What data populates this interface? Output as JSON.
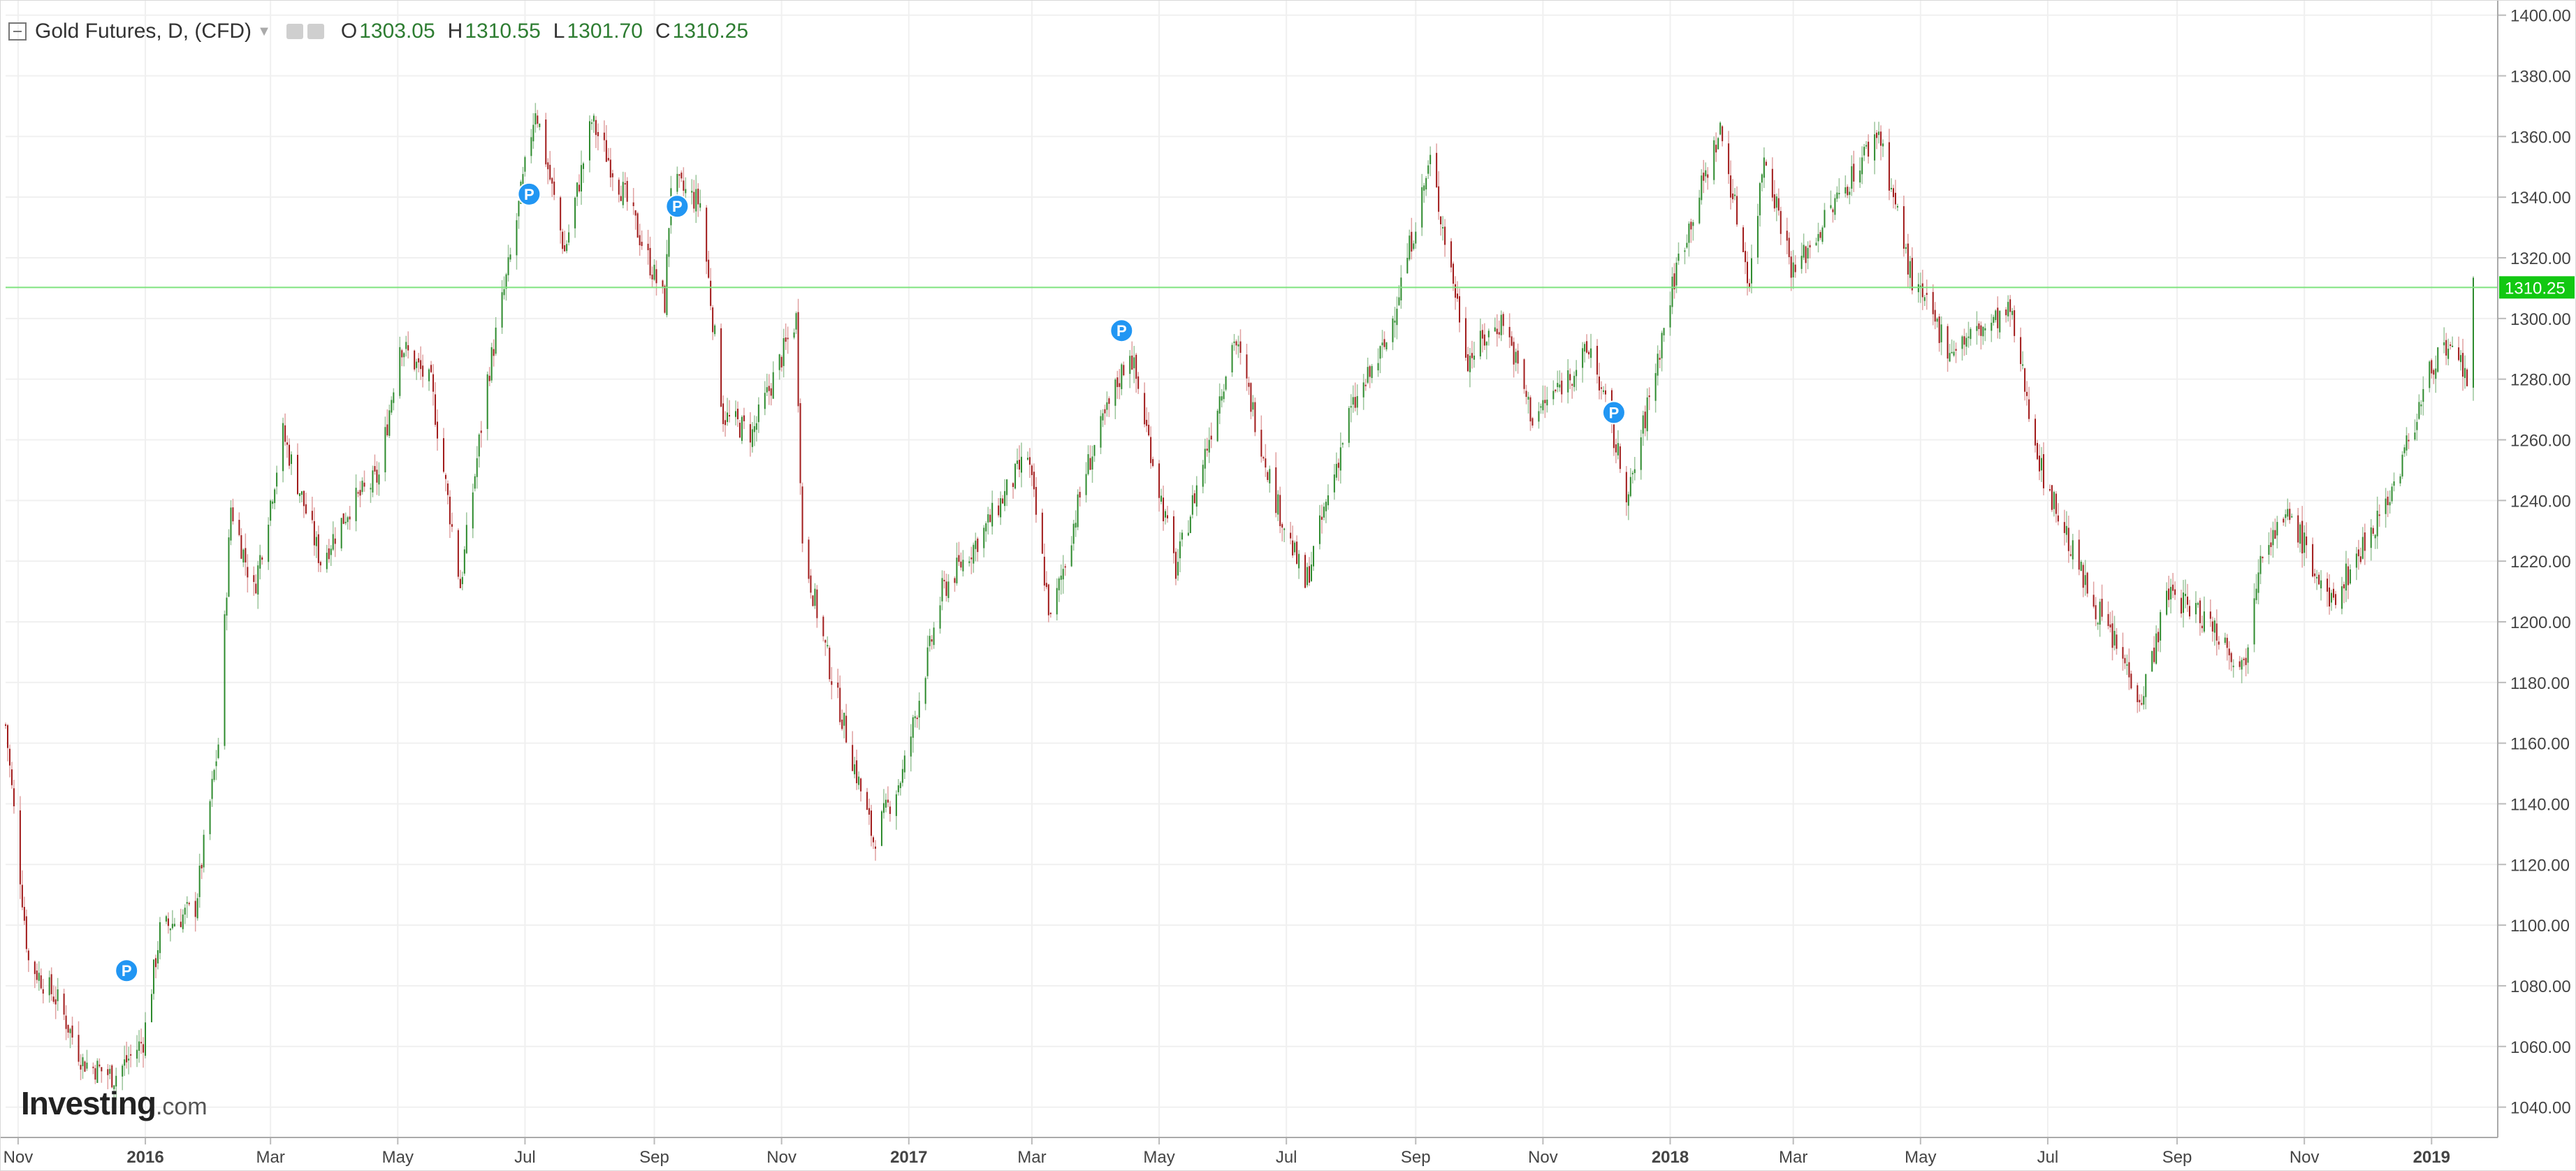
{
  "header": {
    "title": "Gold Futures, D, (CFD)",
    "ohlc": [
      {
        "key": "O",
        "value": "1303.05"
      },
      {
        "key": "H",
        "value": "1310.55"
      },
      {
        "key": "L",
        "value": "1301.70"
      },
      {
        "key": "C",
        "value": "1310.25"
      }
    ]
  },
  "logo": {
    "main": "Investing",
    "sub": ".com"
  },
  "colors": {
    "up": "#2e8b2e",
    "down": "#a11b1b",
    "price_line": "#7fe37f",
    "price_label_bg": "#12c812",
    "marker": "#2196f3",
    "grid": "#f0f0f0",
    "axis_text": "#444444"
  },
  "chart_data": {
    "type": "candlestick",
    "title": "Gold Futures, D, (CFD)",
    "ylim": [
      1030,
      1405
    ],
    "y_ticks": [
      1040,
      1060,
      1080,
      1100,
      1120,
      1140,
      1160,
      1180,
      1200,
      1220,
      1240,
      1260,
      1280,
      1300,
      1320,
      1340,
      1360,
      1380,
      1400
    ],
    "y_tick_labels": [
      "1040.00",
      "1060.00",
      "1080.00",
      "1100.00",
      "1120.00",
      "1140.00",
      "1160.00",
      "1180.00",
      "1200.00",
      "1220.00",
      "1240.00",
      "1260.00",
      "1280.00",
      "1300.00",
      "1320.00",
      "1340.00",
      "1360.00",
      "1380.00",
      "1400.00"
    ],
    "x_range": [
      "2015-10-26",
      "2019-01-21"
    ],
    "x_ticks": [
      {
        "date": "2015-11-01",
        "label": "Nov"
      },
      {
        "date": "2016-01-01",
        "label": "2016"
      },
      {
        "date": "2016-03-01",
        "label": "Mar"
      },
      {
        "date": "2016-05-01",
        "label": "May"
      },
      {
        "date": "2016-07-01",
        "label": "Jul"
      },
      {
        "date": "2016-09-01",
        "label": "Sep"
      },
      {
        "date": "2016-11-01",
        "label": "Nov"
      },
      {
        "date": "2017-01-01",
        "label": "2017"
      },
      {
        "date": "2017-03-01",
        "label": "Mar"
      },
      {
        "date": "2017-05-01",
        "label": "May"
      },
      {
        "date": "2017-07-01",
        "label": "Jul"
      },
      {
        "date": "2017-09-01",
        "label": "Sep"
      },
      {
        "date": "2017-11-01",
        "label": "Nov"
      },
      {
        "date": "2018-01-01",
        "label": "2018"
      },
      {
        "date": "2018-03-01",
        "label": "Mar"
      },
      {
        "date": "2018-05-01",
        "label": "May"
      },
      {
        "date": "2018-07-01",
        "label": "Jul"
      },
      {
        "date": "2018-09-01",
        "label": "Sep"
      },
      {
        "date": "2018-11-01",
        "label": "Nov"
      },
      {
        "date": "2019-01-01",
        "label": "2019"
      }
    ],
    "path": [
      [
        "2015-10-26",
        1166
      ],
      [
        "2015-11-06",
        1088
      ],
      [
        "2015-11-20",
        1075
      ],
      [
        "2015-12-02",
        1055
      ],
      [
        "2015-12-17",
        1050
      ],
      [
        "2015-12-31",
        1062
      ],
      [
        "2016-01-08",
        1098
      ],
      [
        "2016-01-25",
        1106
      ],
      [
        "2016-02-05",
        1160
      ],
      [
        "2016-02-11",
        1238
      ],
      [
        "2016-02-22",
        1210
      ],
      [
        "2016-03-07",
        1262
      ],
      [
        "2016-03-25",
        1220
      ],
      [
        "2016-04-08",
        1238
      ],
      [
        "2016-04-22",
        1248
      ],
      [
        "2016-05-02",
        1292
      ],
      [
        "2016-05-17",
        1278
      ],
      [
        "2016-05-31",
        1212
      ],
      [
        "2016-06-13",
        1280
      ],
      [
        "2016-06-24",
        1320
      ],
      [
        "2016-07-06",
        1370
      ],
      [
        "2016-07-20",
        1322
      ],
      [
        "2016-08-02",
        1365
      ],
      [
        "2016-08-18",
        1340
      ],
      [
        "2016-09-06",
        1305
      ],
      [
        "2016-09-09",
        1345
      ],
      [
        "2016-09-23",
        1338
      ],
      [
        "2016-10-04",
        1268
      ],
      [
        "2016-10-18",
        1262
      ],
      [
        "2016-11-08",
        1300
      ],
      [
        "2016-11-11",
        1225
      ],
      [
        "2016-11-25",
        1182
      ],
      [
        "2016-12-15",
        1128
      ],
      [
        "2016-12-29",
        1150
      ],
      [
        "2017-01-17",
        1210
      ],
      [
        "2017-02-06",
        1230
      ],
      [
        "2017-02-27",
        1255
      ],
      [
        "2017-03-10",
        1200
      ],
      [
        "2017-03-27",
        1250
      ],
      [
        "2017-04-17",
        1290
      ],
      [
        "2017-05-09",
        1217
      ],
      [
        "2017-06-06",
        1294
      ],
      [
        "2017-06-26",
        1240
      ],
      [
        "2017-07-10",
        1212
      ],
      [
        "2017-07-31",
        1268
      ],
      [
        "2017-08-18",
        1292
      ],
      [
        "2017-09-08",
        1352
      ],
      [
        "2017-09-26",
        1287
      ],
      [
        "2017-10-13",
        1300
      ],
      [
        "2017-10-27",
        1267
      ],
      [
        "2017-11-24",
        1290
      ],
      [
        "2017-12-12",
        1241
      ],
      [
        "2018-01-05",
        1320
      ],
      [
        "2018-01-25",
        1362
      ],
      [
        "2018-02-08",
        1312
      ],
      [
        "2018-02-15",
        1355
      ],
      [
        "2018-03-01",
        1315
      ],
      [
        "2018-04-11",
        1362
      ],
      [
        "2018-04-27",
        1312
      ],
      [
        "2018-05-15",
        1290
      ],
      [
        "2018-06-13",
        1302
      ],
      [
        "2018-06-28",
        1250
      ],
      [
        "2018-07-19",
        1212
      ],
      [
        "2018-08-15",
        1175
      ],
      [
        "2018-08-28",
        1210
      ],
      [
        "2018-09-17",
        1200
      ],
      [
        "2018-10-03",
        1185
      ],
      [
        "2018-10-11",
        1225
      ],
      [
        "2018-10-26",
        1235
      ],
      [
        "2018-11-13",
        1205
      ],
      [
        "2018-11-29",
        1225
      ],
      [
        "2018-12-14",
        1245
      ],
      [
        "2019-01-04",
        1290
      ],
      [
        "2019-01-15",
        1285
      ],
      [
        "2019-01-18",
        1280
      ],
      [
        "2019-01-21",
        1310
      ]
    ],
    "last_close": 1310.25,
    "last_close_label": "1310.25",
    "markers": [
      {
        "date": "2015-12-23",
        "y": 1085,
        "label": "P"
      },
      {
        "date": "2016-07-03",
        "y": 1341,
        "label": "P"
      },
      {
        "date": "2016-09-12",
        "y": 1337,
        "label": "P"
      },
      {
        "date": "2017-04-13",
        "y": 1296,
        "label": "P"
      },
      {
        "date": "2017-12-05",
        "y": 1269,
        "label": "P"
      }
    ]
  }
}
